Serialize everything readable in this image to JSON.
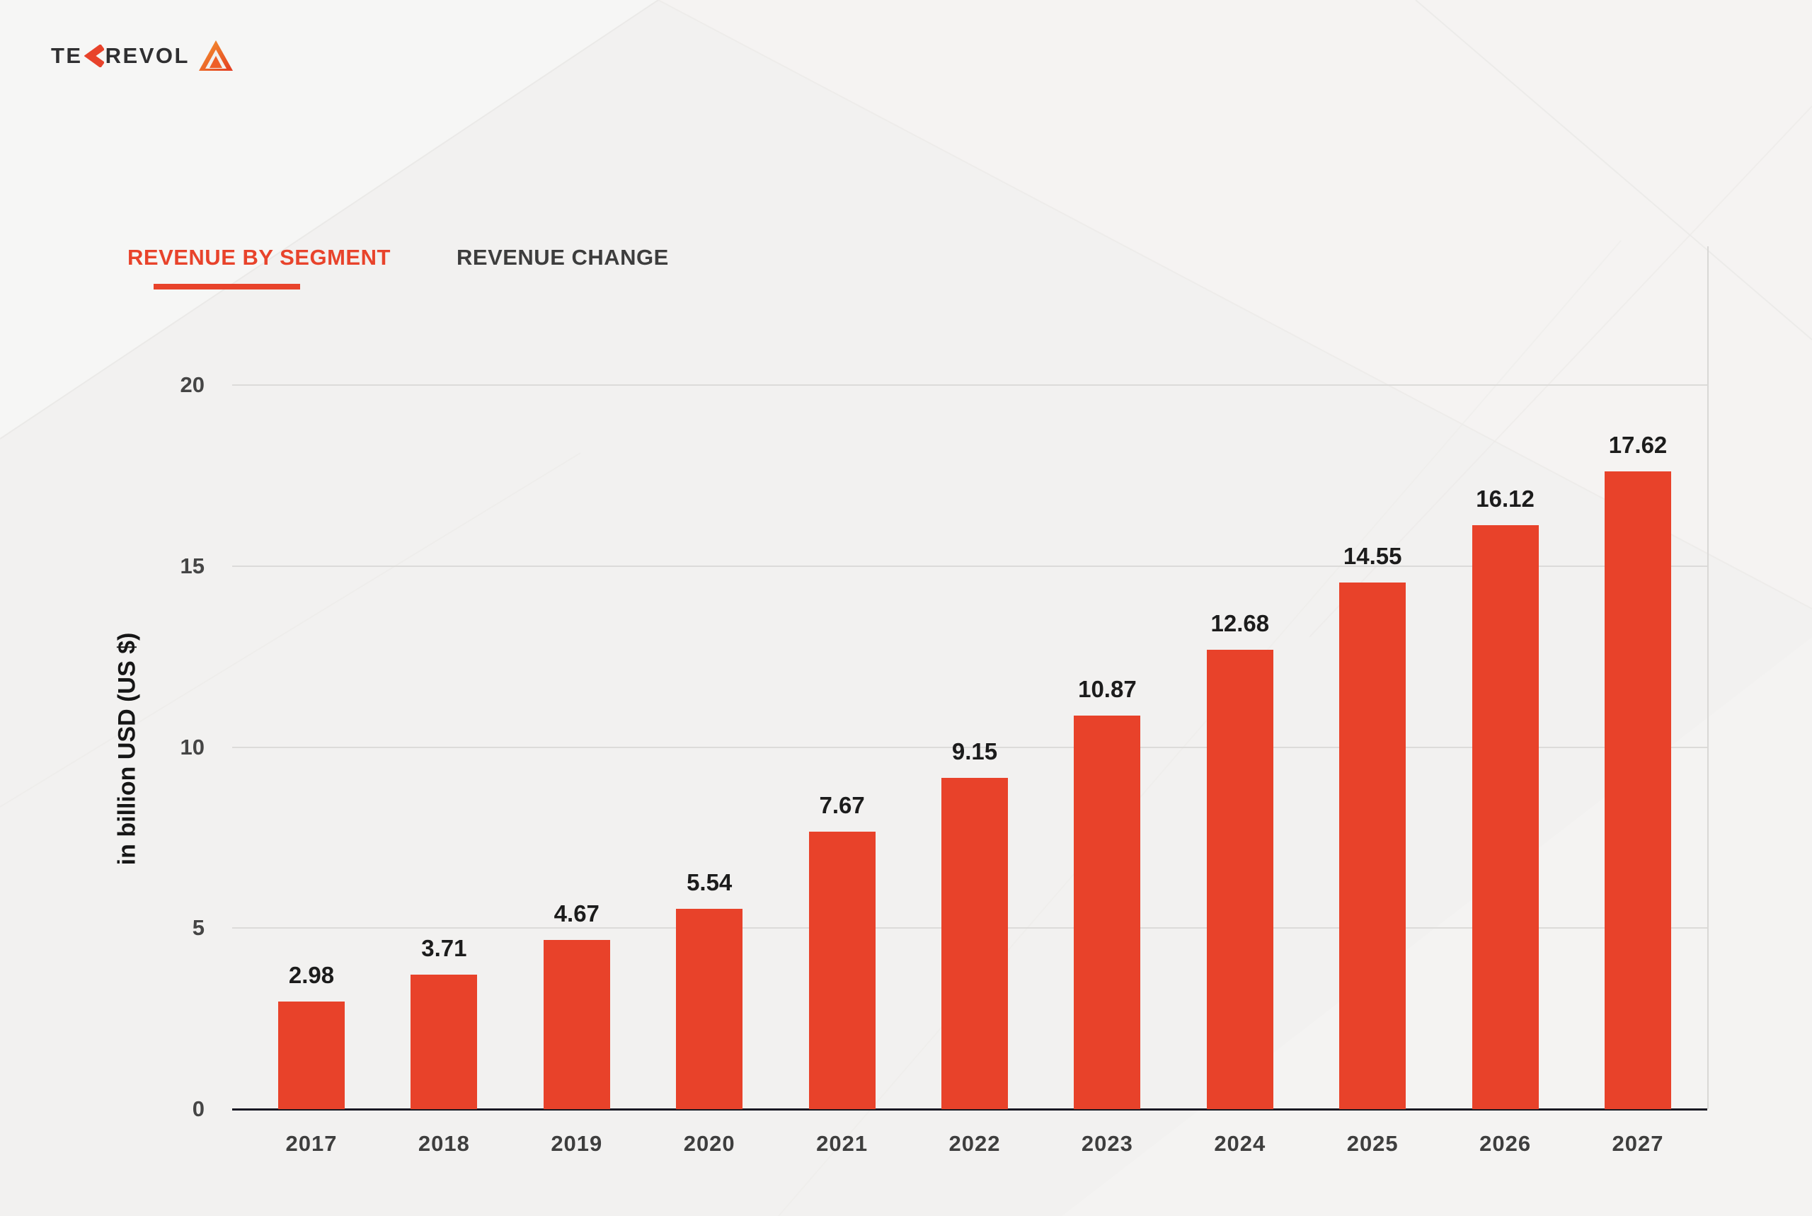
{
  "logo": {
    "text_before_k": "TE",
    "text_after_k": "REVOL",
    "chevron_icon": "chevron-left-icon",
    "emblem_icon": "tekrevol-triangle-icon"
  },
  "tabs": [
    {
      "label": "REVENUE BY SEGMENT",
      "active": true
    },
    {
      "label": "REVENUE CHANGE",
      "active": false
    }
  ],
  "chart_data": {
    "type": "bar",
    "categories": [
      "2017",
      "2018",
      "2019",
      "2020",
      "2021",
      "2022",
      "2023",
      "2024",
      "2025",
      "2026",
      "2027"
    ],
    "values": [
      2.98,
      3.71,
      4.67,
      5.54,
      7.67,
      9.15,
      10.87,
      12.68,
      14.55,
      16.12,
      17.62
    ],
    "value_labels": [
      "2.98",
      "3.71",
      "4.67",
      "5.54",
      "7.67",
      "9.15",
      "10.87",
      "12.68",
      "14.55",
      "16.12",
      "17.62"
    ],
    "title": "",
    "xlabel": "",
    "ylabel": "in billion USD (US $)",
    "ytick_labels": [
      "0",
      "5",
      "10",
      "15",
      "20"
    ],
    "yticks": [
      0,
      5,
      10,
      15,
      20
    ],
    "ylim": [
      0,
      20
    ],
    "grid": true,
    "legend": false,
    "bar_color": "#e8422a"
  },
  "colors": {
    "accent": "#e8432b",
    "bar": "#e8422a",
    "axis_line": "#191923",
    "gridline": "#dcdbd9",
    "tab_inactive": "#3d3d3d",
    "background": "#f2f1f0"
  }
}
